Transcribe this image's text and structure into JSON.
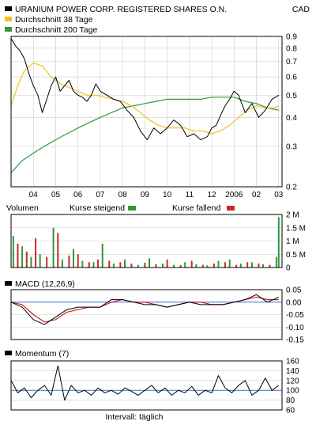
{
  "header": {
    "security_name": "URANIUM POWER CORP. REGISTERED SHARES O.N.",
    "currency": "CAD",
    "legend": [
      {
        "label": "Durchschnitt 38 Tage",
        "color": "#f0c020"
      },
      {
        "label": "Durchschnitt 200 Tage",
        "color": "#2e9a3a"
      }
    ]
  },
  "colors": {
    "price": "#000000",
    "ma38": "#f0c020",
    "ma200": "#2e9a3a",
    "volume_up": "#2e9a3a",
    "volume_down": "#c82a2a",
    "macd_signal": "#d02020",
    "zero_line": "#3b6fd8",
    "grid": "#cccccc"
  },
  "footer": {
    "interval_label": "Intervall: täglich"
  },
  "chart_data": [
    {
      "type": "line",
      "title": "URANIUM POWER CORP. REGISTERED SHARES O.N.",
      "ylabel": "CAD",
      "y_scale": "log",
      "ylim": [
        0.2,
        0.9
      ],
      "y_ticks": [
        "0.9",
        "0.8",
        "0.7",
        "0.6",
        "0.5",
        "0.4",
        "0.3",
        "0.2"
      ],
      "x_tick_labels": [
        "04",
        "05",
        "06",
        "07",
        "08",
        "09",
        "10",
        "11",
        "12",
        "2006",
        "02",
        "03"
      ],
      "series": [
        {
          "name": "URANIUM POWER CORP. REGISTERED SHARES O.N.",
          "x": [
            0,
            0.2,
            0.4,
            0.6,
            0.8,
            1.0,
            1.2,
            1.4,
            1.6,
            1.8,
            2.0,
            2.2,
            2.4,
            2.6,
            2.8,
            3.0,
            3.2,
            3.4,
            3.6,
            3.8,
            4.0,
            4.3,
            4.6,
            4.9,
            5.2,
            5.5,
            5.8,
            6.1,
            6.4,
            6.7,
            7.0,
            7.3,
            7.6,
            7.9,
            8.2,
            8.5,
            8.8,
            9.0,
            9.2,
            9.4,
            9.6,
            9.8,
            10.0,
            10.2,
            10.5,
            10.8,
            11.1,
            11.4,
            11.7,
            12.0
          ],
          "values": [
            0.88,
            0.82,
            0.78,
            0.72,
            0.62,
            0.55,
            0.5,
            0.42,
            0.48,
            0.55,
            0.6,
            0.52,
            0.55,
            0.58,
            0.52,
            0.5,
            0.49,
            0.47,
            0.5,
            0.56,
            0.52,
            0.5,
            0.48,
            0.47,
            0.43,
            0.4,
            0.35,
            0.32,
            0.36,
            0.34,
            0.36,
            0.39,
            0.37,
            0.33,
            0.34,
            0.32,
            0.33,
            0.36,
            0.37,
            0.41,
            0.45,
            0.48,
            0.52,
            0.5,
            0.42,
            0.46,
            0.4,
            0.43,
            0.48,
            0.5
          ]
        },
        {
          "name": "Durchschnitt 38 Tage",
          "x": [
            0,
            0.3,
            0.6,
            1.0,
            1.4,
            1.8,
            2.2,
            2.6,
            3.0,
            3.4,
            3.8,
            4.2,
            4.6,
            5.0,
            5.4,
            5.8,
            6.2,
            6.6,
            7.0,
            7.4,
            7.8,
            8.2,
            8.6,
            9.0,
            9.4,
            9.8,
            10.2,
            10.6,
            11.0,
            11.4,
            11.8,
            12.0
          ],
          "values": [
            0.45,
            0.55,
            0.64,
            0.69,
            0.67,
            0.6,
            0.56,
            0.54,
            0.52,
            0.5,
            0.5,
            0.49,
            0.48,
            0.47,
            0.45,
            0.42,
            0.39,
            0.37,
            0.36,
            0.36,
            0.36,
            0.35,
            0.35,
            0.34,
            0.35,
            0.37,
            0.4,
            0.43,
            0.45,
            0.44,
            0.44,
            0.45
          ]
        },
        {
          "name": "Durchschnitt 200 Tage",
          "x": [
            0,
            0.5,
            1.0,
            1.5,
            2.0,
            2.5,
            3.0,
            3.5,
            4.0,
            4.5,
            5.0,
            5.5,
            6.0,
            6.5,
            7.0,
            7.5,
            8.0,
            8.5,
            9.0,
            9.5,
            10.0,
            10.5,
            11.0,
            11.5,
            12.0
          ],
          "values": [
            0.23,
            0.26,
            0.28,
            0.3,
            0.32,
            0.34,
            0.36,
            0.38,
            0.4,
            0.42,
            0.44,
            0.45,
            0.46,
            0.47,
            0.48,
            0.48,
            0.48,
            0.48,
            0.49,
            0.49,
            0.49,
            0.47,
            0.46,
            0.44,
            0.43
          ]
        }
      ]
    },
    {
      "type": "bar",
      "title": "Volumen",
      "legend": [
        {
          "label": "Kurse steigend",
          "color": "#2e9a3a"
        },
        {
          "label": "Kurse fallend",
          "color": "#c82a2a"
        }
      ],
      "ylim": [
        0,
        2000000
      ],
      "y_ticks": [
        "2 M",
        "1.5 M",
        "1 M",
        "0.5 M",
        "0"
      ],
      "series": [
        {
          "name": "Kurse steigend",
          "x": [
            0.1,
            0.5,
            0.9,
            1.3,
            1.9,
            2.3,
            2.8,
            3.2,
            3.7,
            4.1,
            4.6,
            5.1,
            5.7,
            6.2,
            6.8,
            7.3,
            7.8,
            8.3,
            8.8,
            9.3,
            9.8,
            10.3,
            10.8,
            11.3,
            11.9,
            12.0
          ],
          "values": [
            1200000,
            800000,
            400000,
            500000,
            1500000,
            300000,
            700000,
            250000,
            200000,
            900000,
            150000,
            300000,
            100000,
            350000,
            150000,
            100000,
            200000,
            120000,
            80000,
            250000,
            300000,
            150000,
            200000,
            120000,
            400000,
            1900000
          ]
        },
        {
          "name": "Kurse fallend",
          "x": [
            0.3,
            0.7,
            1.1,
            1.6,
            2.1,
            2.6,
            3.0,
            3.5,
            3.9,
            4.4,
            4.9,
            5.4,
            6.0,
            6.5,
            7.0,
            7.6,
            8.1,
            8.6,
            9.1,
            9.6,
            10.1,
            10.6,
            11.1,
            11.6
          ],
          "values": [
            900000,
            600000,
            1100000,
            400000,
            1300000,
            450000,
            500000,
            200000,
            300000,
            250000,
            200000,
            150000,
            180000,
            120000,
            300000,
            90000,
            250000,
            100000,
            150000,
            200000,
            100000,
            200000,
            150000,
            100000
          ]
        }
      ]
    },
    {
      "type": "line",
      "title": "MACD (12,26,9)",
      "ylim": [
        -0.15,
        0.05
      ],
      "y_ticks": [
        "0.05",
        "0.00",
        "-0.05",
        "-0.10",
        "-0.15"
      ],
      "series": [
        {
          "name": "MACD (12,26,9)",
          "x": [
            0,
            0.5,
            1.0,
            1.5,
            2.0,
            2.5,
            3.0,
            3.5,
            4.0,
            4.5,
            5.0,
            5.5,
            6.0,
            6.5,
            7.0,
            7.5,
            8.0,
            8.5,
            9.0,
            9.5,
            10.0,
            10.5,
            11.0,
            11.5,
            12.0
          ],
          "values": [
            0.0,
            -0.02,
            -0.07,
            -0.09,
            -0.06,
            -0.03,
            -0.02,
            -0.02,
            -0.02,
            0.01,
            0.01,
            0.0,
            -0.01,
            -0.01,
            -0.02,
            -0.01,
            0.0,
            -0.01,
            -0.01,
            -0.01,
            0.0,
            0.01,
            0.03,
            0.0,
            0.02
          ]
        },
        {
          "name": "Signal",
          "x": [
            0,
            0.5,
            1.0,
            1.5,
            2.0,
            2.5,
            3.0,
            3.5,
            4.0,
            4.5,
            5.0,
            5.5,
            6.0,
            6.5,
            7.0,
            7.5,
            8.0,
            8.5,
            9.0,
            9.5,
            10.0,
            10.5,
            11.0,
            11.5,
            12.0
          ],
          "values": [
            0.0,
            -0.01,
            -0.05,
            -0.08,
            -0.07,
            -0.04,
            -0.03,
            -0.02,
            -0.02,
            0.0,
            0.01,
            0.0,
            0.0,
            -0.01,
            -0.02,
            -0.01,
            0.0,
            0.0,
            -0.01,
            -0.01,
            0.0,
            0.01,
            0.02,
            0.01,
            0.01
          ]
        }
      ]
    },
    {
      "type": "line",
      "title": "Momentum (7)",
      "ylim": [
        60,
        160
      ],
      "y_ticks": [
        "160",
        "140",
        "120",
        "100",
        "80",
        "60"
      ],
      "series": [
        {
          "name": "Momentum (7)",
          "x": [
            0,
            0.3,
            0.6,
            0.9,
            1.2,
            1.5,
            1.8,
            2.1,
            2.4,
            2.7,
            3.0,
            3.3,
            3.6,
            3.9,
            4.2,
            4.5,
            4.8,
            5.1,
            5.4,
            5.7,
            6.0,
            6.3,
            6.6,
            6.9,
            7.2,
            7.5,
            7.8,
            8.1,
            8.4,
            8.7,
            9.0,
            9.3,
            9.6,
            9.9,
            10.2,
            10.5,
            10.8,
            11.1,
            11.4,
            11.7,
            12.0
          ],
          "values": [
            120,
            95,
            105,
            85,
            100,
            110,
            90,
            150,
            80,
            110,
            95,
            100,
            90,
            105,
            95,
            100,
            92,
            105,
            98,
            90,
            100,
            110,
            95,
            105,
            90,
            100,
            95,
            108,
            90,
            100,
            95,
            130,
            105,
            95,
            110,
            120,
            90,
            100,
            125,
            100,
            110
          ]
        }
      ]
    }
  ]
}
